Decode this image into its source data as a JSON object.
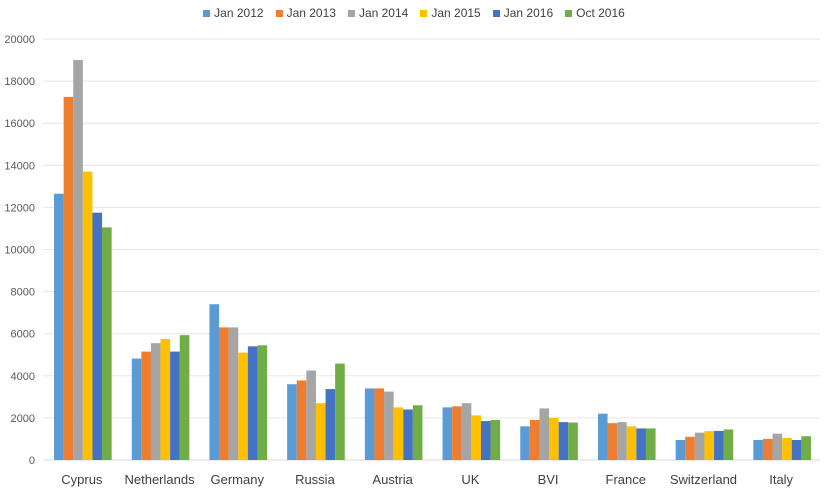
{
  "chart_data": {
    "type": "bar",
    "title": "",
    "xlabel": "",
    "ylabel": "",
    "ylim": [
      0,
      20000
    ],
    "yticks": [
      0,
      2000,
      4000,
      6000,
      8000,
      10000,
      12000,
      14000,
      16000,
      18000,
      20000
    ],
    "ytick_labels": [
      "0",
      "2000",
      "4000",
      "6000",
      "8000",
      "10000",
      "12000",
      "14000",
      "16000",
      "18000",
      "20000"
    ],
    "grid": true,
    "legend_position": "top-center",
    "categories": [
      "Cyprus",
      "Netherlands",
      "Germany",
      "Russia",
      "Austria",
      "UK",
      "BVI",
      "France",
      "Switzerland",
      "Italy"
    ],
    "series": [
      {
        "name": "Jan 2012",
        "color": "#5B9BD5",
        "values": [
          12650,
          4820,
          7400,
          3600,
          3400,
          2500,
          1600,
          2200,
          950,
          950
        ]
      },
      {
        "name": "Jan 2013",
        "color": "#ED7D31",
        "values": [
          17250,
          5150,
          6300,
          3780,
          3400,
          2550,
          1900,
          1750,
          1100,
          1000
        ]
      },
      {
        "name": "Jan 2014",
        "color": "#A5A5A5",
        "values": [
          19000,
          5550,
          6300,
          4250,
          3250,
          2700,
          2450,
          1800,
          1300,
          1250
        ]
      },
      {
        "name": "Jan 2015",
        "color": "#FFC000",
        "values": [
          13700,
          5750,
          5100,
          2700,
          2500,
          2120,
          2000,
          1600,
          1370,
          1050
        ]
      },
      {
        "name": "Jan 2016",
        "color": "#4472C4",
        "values": [
          11750,
          5150,
          5400,
          3370,
          2400,
          1850,
          1800,
          1500,
          1380,
          950
        ]
      },
      {
        "name": "Oct 2016",
        "color": "#70AD47",
        "values": [
          11050,
          5930,
          5450,
          4580,
          2600,
          1900,
          1780,
          1500,
          1450,
          1130
        ]
      }
    ]
  }
}
